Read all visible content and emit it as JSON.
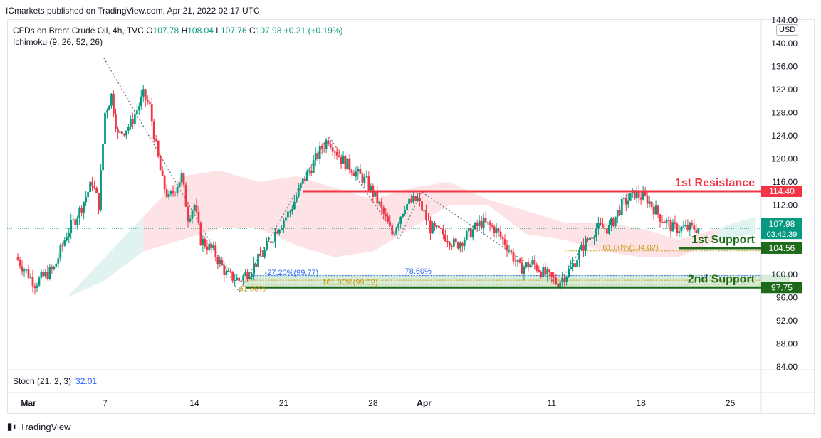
{
  "header": {
    "publisher": "ICmarkets published on TradingView.com, Apr 21, 2022 02:17 UTC"
  },
  "legend": {
    "symbol": "CFDs on Brent Crude Oil, 4h, TVC",
    "o_label": "O",
    "o_value": "107.78",
    "h_label": "H",
    "h_value": "108.04",
    "l_label": "L",
    "l_value": "107.76",
    "c_label": "C",
    "c_value": "107.98",
    "change": "+0.21 (+0.19%)",
    "indicator": "Ichimoku (9, 26, 52, 26)"
  },
  "currency": "USD",
  "stoch": {
    "label": "Stoch (21, 2, 3)",
    "value": "32.01"
  },
  "footer": {
    "brand": "TradingView"
  },
  "colors": {
    "up": "#089981",
    "down": "#f23645",
    "resistance": "#f23645",
    "support": "#1e6a1a",
    "fib": "#c49b0c",
    "fib_blue": "#2962ff"
  },
  "chart_data": {
    "type": "candlestick",
    "title": "CFDs on Brent Crude Oil, 4h, TVC",
    "y_ticks": [
      "144.00",
      "140.00",
      "136.00",
      "132.00",
      "128.00",
      "124.00",
      "120.00",
      "116.00",
      "112.00",
      "100.00",
      "96.00",
      "92.00",
      "88.00",
      "84.00"
    ],
    "ylim": [
      83,
      145
    ],
    "x_ticks": [
      {
        "label": "Mar",
        "day": 0
      },
      {
        "label": "7",
        "day": 6
      },
      {
        "label": "14",
        "day": 13
      },
      {
        "label": "21",
        "day": 20
      },
      {
        "label": "28",
        "day": 27
      },
      {
        "label": "Apr",
        "day": 31
      },
      {
        "label": "11",
        "day": 41
      },
      {
        "label": "18",
        "day": 48
      },
      {
        "label": "25",
        "day": 55
      }
    ],
    "xlim": [
      -1.5,
      59.7
    ],
    "close_path": [
      [
        -1,
        103
      ],
      [
        0.5,
        98.5
      ],
      [
        2,
        101
      ],
      [
        3,
        107
      ],
      [
        4,
        111
      ],
      [
        5,
        116
      ],
      [
        5.5,
        112
      ],
      [
        6,
        128
      ],
      [
        6.5,
        131
      ],
      [
        7,
        124
      ],
      [
        8,
        126
      ],
      [
        9,
        131
      ],
      [
        9.5,
        129
      ],
      [
        10,
        122
      ],
      [
        10.5,
        116
      ],
      [
        11,
        113
      ],
      [
        12,
        117
      ],
      [
        12.5,
        110
      ],
      [
        13,
        112
      ],
      [
        13.5,
        106
      ],
      [
        14.5,
        104
      ],
      [
        15.5,
        100
      ],
      [
        16.5,
        99
      ],
      [
        17.5,
        101
      ],
      [
        18.5,
        104
      ],
      [
        19.5,
        108
      ],
      [
        20.5,
        111
      ],
      [
        21.5,
        116
      ],
      [
        22.5,
        120
      ],
      [
        23,
        122
      ],
      [
        23.5,
        123.5
      ],
      [
        24.5,
        120
      ],
      [
        25.5,
        118
      ],
      [
        26.5,
        116
      ],
      [
        27.5,
        112
      ],
      [
        28.5,
        107
      ],
      [
        29.5,
        112
      ],
      [
        30.5,
        113
      ],
      [
        31.5,
        108
      ],
      [
        32.5,
        107
      ],
      [
        33.5,
        105
      ],
      [
        34.5,
        107
      ],
      [
        35.5,
        109
      ],
      [
        36.5,
        108
      ],
      [
        37.5,
        105
      ],
      [
        38.5,
        101
      ],
      [
        39.5,
        102
      ],
      [
        40.5,
        100
      ],
      [
        41.5,
        98.5
      ],
      [
        42.5,
        101
      ],
      [
        43.5,
        105
      ],
      [
        44.5,
        108
      ],
      [
        45.5,
        108
      ],
      [
        46.5,
        112
      ],
      [
        47.5,
        114
      ],
      [
        48.5,
        113
      ],
      [
        49.5,
        110
      ],
      [
        50.5,
        108
      ],
      [
        51.5,
        108
      ],
      [
        52.5,
        108
      ]
    ],
    "cloud": [
      [
        3,
        96,
        96
      ],
      [
        6,
        99,
        103
      ],
      [
        9,
        104,
        110
      ],
      [
        12,
        106,
        117
      ],
      [
        15,
        108,
        118
      ],
      [
        18,
        108,
        116
      ],
      [
        21,
        105,
        117
      ],
      [
        24,
        103,
        115
      ],
      [
        27,
        104,
        113
      ],
      [
        30,
        108,
        115
      ],
      [
        33,
        112,
        116
      ],
      [
        36,
        112,
        113
      ],
      [
        39,
        107,
        111
      ],
      [
        42,
        106,
        109
      ],
      [
        45,
        104,
        109
      ],
      [
        48,
        103,
        108
      ],
      [
        51,
        103,
        106
      ],
      [
        54,
        106,
        108
      ],
      [
        57,
        107,
        110
      ]
    ],
    "levels": [
      {
        "name": "1st Resistance",
        "label": "1st Resistance",
        "price": 114.4,
        "tag": "114.40",
        "color": "#f23645"
      },
      {
        "name": "1st Support",
        "label": "1st Support",
        "price": 104.56,
        "tag": "104.56",
        "color": "#1e6a1a"
      },
      {
        "name": "2nd Support",
        "label": "2nd Support",
        "price": 97.75,
        "tag": "97.75",
        "color": "#1e6a1a"
      }
    ],
    "current_price": {
      "value": "107.98",
      "countdown": "03:42:39"
    },
    "annotations": [
      {
        "text": "61.80%(104.02)",
        "x": 45,
        "price": 104.6
      },
      {
        "text": "-27.20%(99.77)",
        "x": 18.5,
        "price": 99.9
      },
      {
        "text": "78.60%",
        "x": 29.5,
        "price": 100.1
      },
      {
        "text": "161.80%(99.02)",
        "x": 23,
        "price": 98.6
      },
      {
        "text": "61.80%",
        "x": 16.5,
        "price": 97.5
      }
    ]
  }
}
